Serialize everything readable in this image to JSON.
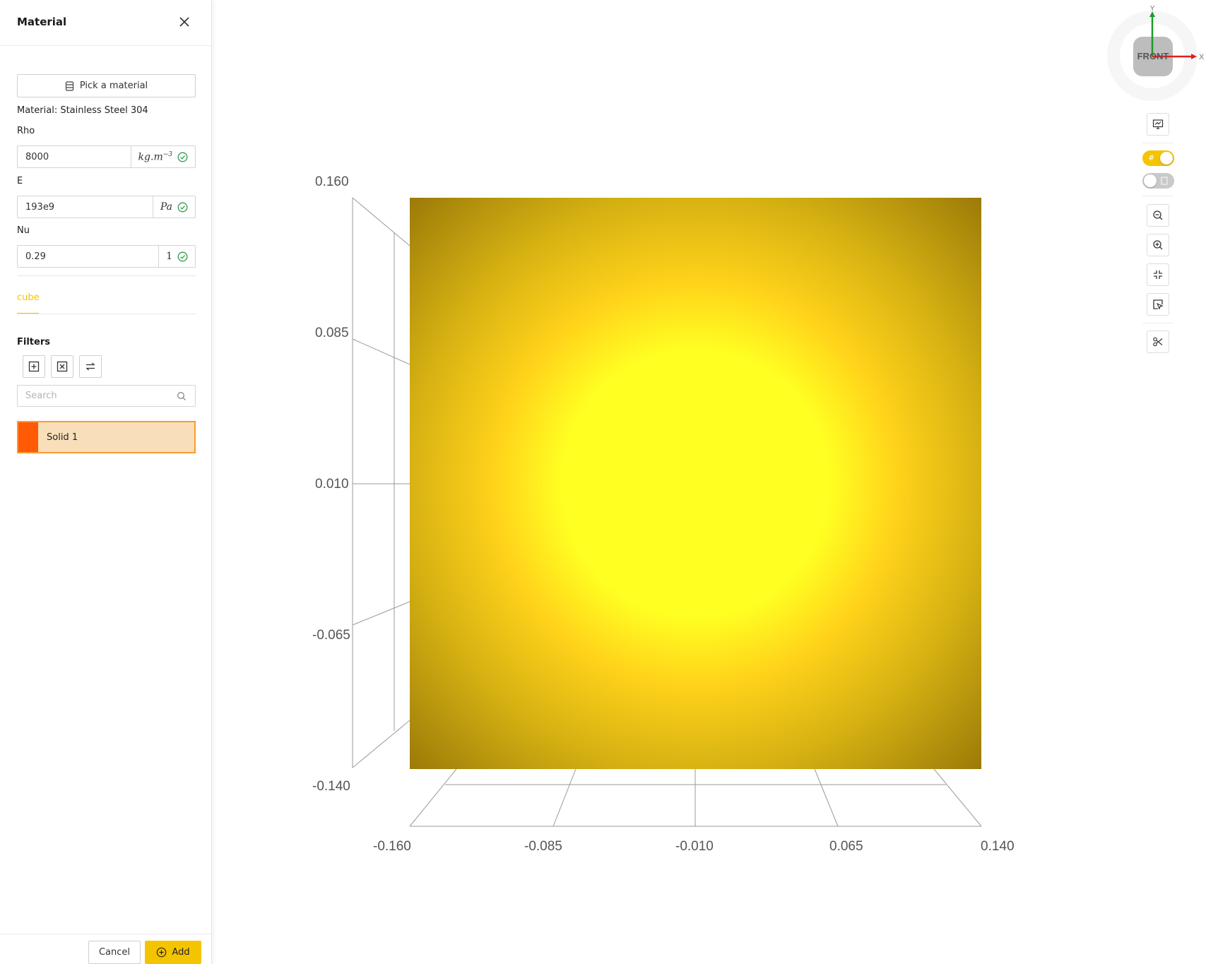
{
  "panel": {
    "title": "Material",
    "pick_button": "Pick a material",
    "material_label": "Material: Stainless Steel 304",
    "fields": [
      {
        "label": "Rho",
        "value": "8000",
        "unit": "kg.m",
        "unit_exp": "−3"
      },
      {
        "label": "E",
        "value": "193e9",
        "unit": "Pa"
      },
      {
        "label": "Nu",
        "value": "0.29",
        "unit": "1"
      }
    ],
    "tab": "cube",
    "filters_title": "Filters",
    "search_placeholder": "Search",
    "solids": [
      {
        "label": "Solid 1",
        "color": "#ff5a05"
      }
    ],
    "cancel": "Cancel",
    "add": "Add"
  },
  "viewport": {
    "y_ticks": [
      "0.160",
      "0.085",
      "0.010",
      "-0.065",
      "-0.140"
    ],
    "x_ticks": [
      "-0.160",
      "-0.085",
      "-0.010",
      "0.065",
      "0.140"
    ],
    "surface_colors": {
      "center": "#ffff22",
      "mid": "#ffd21a",
      "edge": "#9b7a08"
    },
    "nav_cube": {
      "face": "FRONT",
      "x_axis": "X",
      "y_axis": "Y"
    },
    "toolbar": {
      "grid_toggle": {
        "on": true,
        "glyph": "#"
      },
      "second_toggle": {
        "on": false
      },
      "tools": [
        "screenshot-icon",
        "zoom-out-icon",
        "zoom-in-icon",
        "fit-view-icon",
        "select-icon",
        "cut-icon"
      ]
    }
  },
  "accent_color": "#f5c400"
}
